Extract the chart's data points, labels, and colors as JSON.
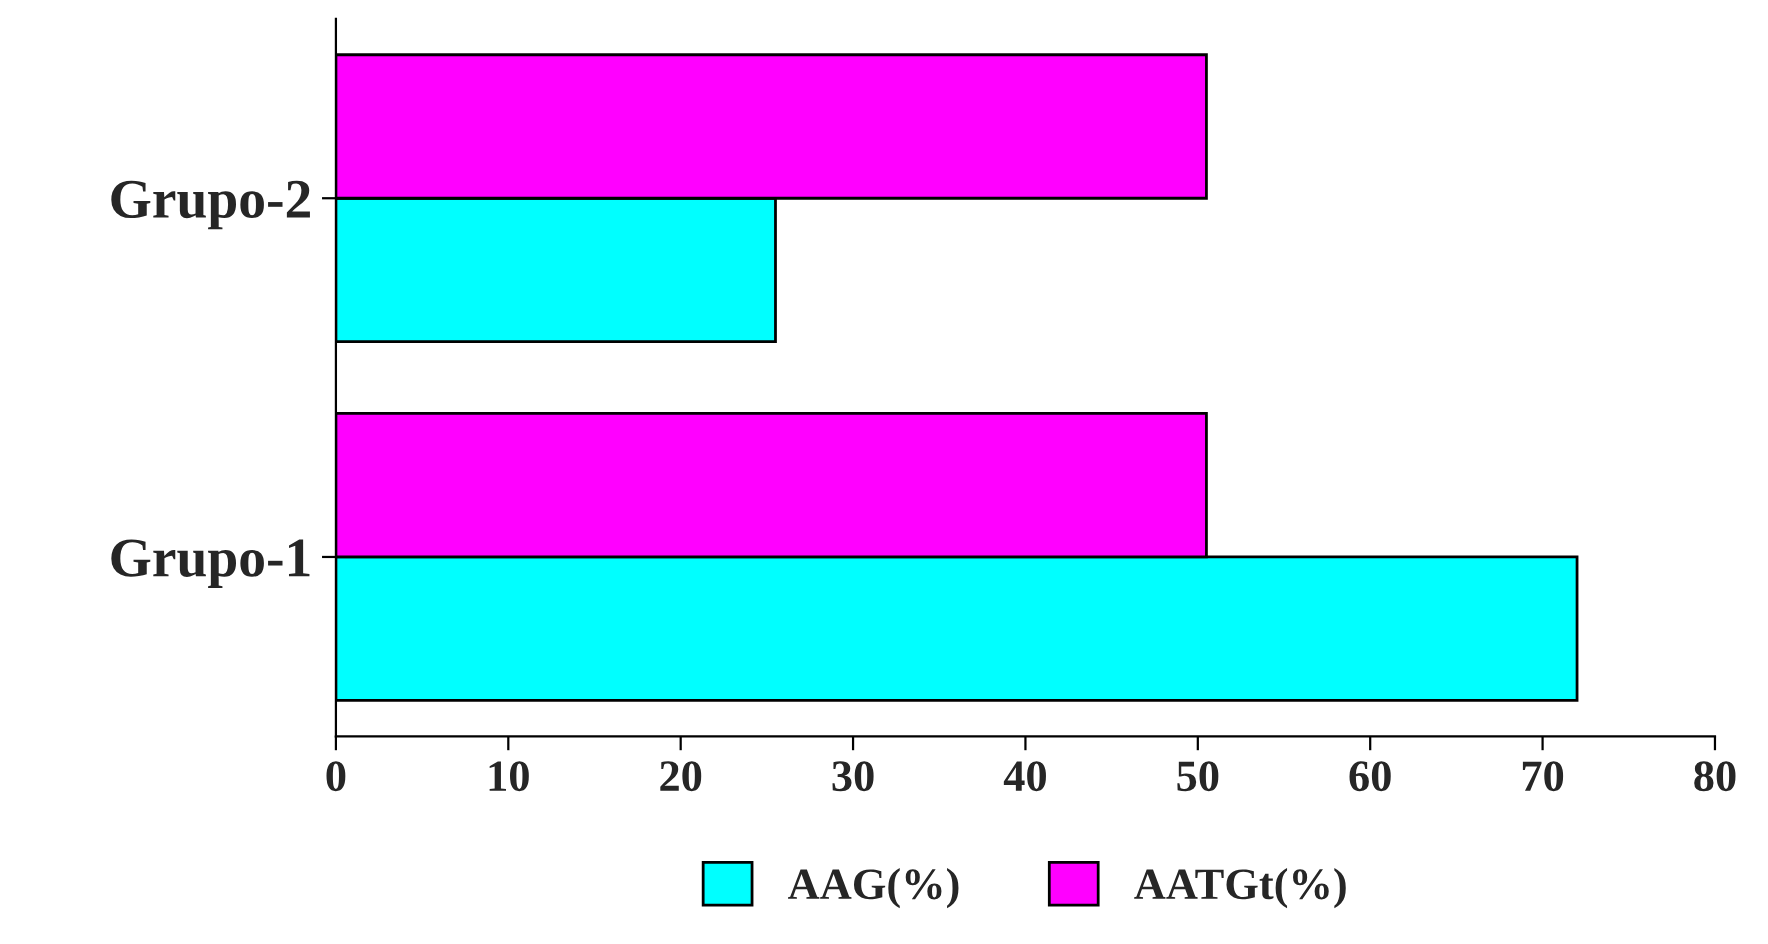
{
  "chart_data": {
    "type": "bar",
    "orientation": "horizontal",
    "categories": [
      "Grupo-2",
      "Grupo-1"
    ],
    "series": [
      {
        "name": "AAG(%)",
        "color": "#00ffff",
        "values": [
          25.5,
          72
        ]
      },
      {
        "name": "AATGt(%)",
        "color": "#ff00ff",
        "values": [
          50.5,
          50.5
        ]
      }
    ],
    "xlim": [
      0,
      80
    ],
    "xticks": [
      0,
      10,
      20,
      30,
      40,
      50,
      60,
      70,
      80
    ],
    "grid": false,
    "legend": "bottom"
  }
}
